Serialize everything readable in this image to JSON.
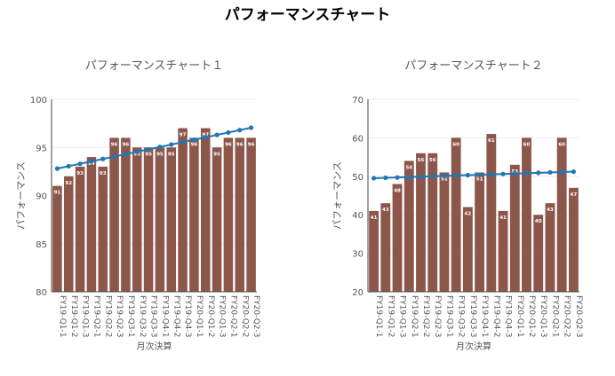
{
  "page": {
    "title": "パフォーマンスチャート"
  },
  "colors": {
    "bar": "#8c564b",
    "line": "#1f77b4",
    "axis": "#444444",
    "grid": "#eeeeee",
    "text": "#555555",
    "label": "#ffffff"
  },
  "chart_data": [
    {
      "type": "bar",
      "title": "パフォーマンスチャート１",
      "xlabel": "月次決算",
      "ylabel": "パフォーマンス",
      "ylim": [
        80,
        100
      ],
      "yticks": [
        80,
        85,
        90,
        95,
        100
      ],
      "categories": [
        "FY19-Q1-1",
        "FY19-Q1-2",
        "FY19-Q1-3",
        "FY19-Q2-1",
        "FY19-Q2-2",
        "FY19-Q2-3",
        "FY19-Q3-1",
        "FY19-Q3-2",
        "FY19-Q3-3",
        "FY19-Q4-1",
        "FY19-Q4-2",
        "FY19-Q4-3",
        "FY20-Q1-1",
        "FY20-Q1-2",
        "FY20-Q1-3",
        "FY20-Q2-1",
        "FY20-Q2-2",
        "FY20-Q2-3"
      ],
      "values": [
        91,
        92,
        93,
        94,
        93,
        96,
        96,
        95,
        95,
        95,
        95,
        97,
        96,
        97,
        95,
        96,
        96,
        96
      ],
      "data_labels": [
        "91",
        "92",
        "93",
        "94",
        "93",
        "96",
        "96",
        "95",
        "95",
        "95",
        "95",
        "97",
        "96",
        "97",
        "95",
        "96",
        "96",
        "96"
      ],
      "trend": [
        92.8,
        93.05,
        93.3,
        93.55,
        93.8,
        94.05,
        94.3,
        94.55,
        94.8,
        95.05,
        95.3,
        95.55,
        95.8,
        96.05,
        96.3,
        96.55,
        96.8,
        97.05
      ]
    },
    {
      "type": "bar",
      "title": "パフォーマンスチャート２",
      "xlabel": "月次決算",
      "ylabel": "パフォーマンス",
      "ylim": [
        20,
        70
      ],
      "yticks": [
        20,
        30,
        40,
        50,
        60,
        70
      ],
      "categories": [
        "FY19-Q1-1",
        "FY19-Q1-2",
        "FY19-Q1-3",
        "FY19-Q2-1",
        "FY19-Q2-2",
        "FY19-Q2-3",
        "FY19-Q3-1",
        "FY19-Q3-2",
        "FY19-Q3-3",
        "FY19-Q4-1",
        "FY19-Q4-2",
        "FY19-Q4-3",
        "FY20-Q1-1",
        "FY20-Q1-2",
        "FY20-Q1-3",
        "FY20-Q2-1",
        "FY20-Q2-2",
        "FY20-Q2-3"
      ],
      "values": [
        41,
        43,
        48,
        54,
        56,
        56,
        51,
        60,
        42,
        51,
        61,
        41,
        53,
        60,
        40,
        43,
        60,
        47
      ],
      "data_labels": [
        "41",
        "43",
        "48",
        "54",
        "56",
        "56",
        "51",
        "60",
        "42",
        "51",
        "61",
        "41",
        "53",
        "60",
        "40",
        "43",
        "60",
        "47"
      ],
      "trend": [
        49.5,
        49.6,
        49.7,
        49.8,
        49.9,
        50.0,
        50.1,
        50.2,
        50.3,
        50.4,
        50.5,
        50.6,
        50.7,
        50.8,
        50.9,
        51.0,
        51.1,
        51.2
      ]
    }
  ]
}
